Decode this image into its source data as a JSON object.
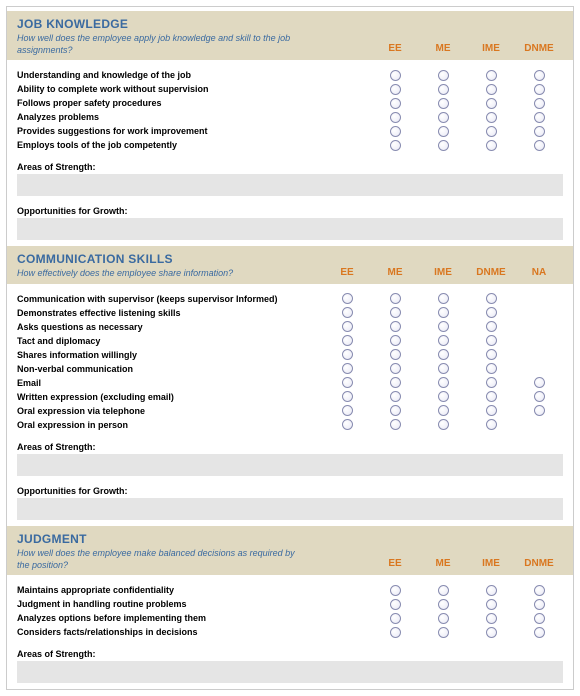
{
  "colors": {
    "header_bg": "#e0d9c1",
    "title_color": "#3a6aa0",
    "col_head_color": "#d97720",
    "textarea_bg": "#e5e5e5",
    "border": "#cccccc"
  },
  "sections": [
    {
      "title": "JOB KNOWLEDGE",
      "subtitle": "How well does the employee apply job knowledge and skill to the job assignments?",
      "columns": [
        "EE",
        "ME",
        "IME",
        "DNME"
      ],
      "items": [
        {
          "label": "Understanding and knowledge of the job",
          "na": false
        },
        {
          "label": "Ability to complete work without supervision",
          "na": false
        },
        {
          "label": "Follows proper safety procedures",
          "na": false
        },
        {
          "label": "Analyzes problems",
          "na": false
        },
        {
          "label": "Provides suggestions for work improvement",
          "na": false
        },
        {
          "label": "Employs tools of the job competently",
          "na": false
        }
      ],
      "strength_label": "Areas of Strength:",
      "growth_label": "Opportunities for Growth:"
    },
    {
      "title": "COMMUNICATION SKILLS",
      "subtitle": "How effectively does the employee share information?",
      "columns": [
        "EE",
        "ME",
        "IME",
        "DNME",
        "NA"
      ],
      "items": [
        {
          "label": "Communication with supervisor (keeps supervisor Informed)",
          "na": false
        },
        {
          "label": "Demonstrates effective listening skills",
          "na": false
        },
        {
          "label": "Asks questions as necessary",
          "na": false
        },
        {
          "label": "Tact and diplomacy",
          "na": false
        },
        {
          "label": "Shares information willingly",
          "na": false
        },
        {
          "label": "Non-verbal communication",
          "na": false
        },
        {
          "label": "Email",
          "na": true
        },
        {
          "label": "Written expression (excluding email)",
          "na": true
        },
        {
          "label": "Oral expression via telephone",
          "na": true
        },
        {
          "label": "Oral expression in person",
          "na": false
        }
      ],
      "strength_label": "Areas of Strength:",
      "growth_label": "Opportunities for Growth:"
    },
    {
      "title": "JUDGMENT",
      "subtitle": "How well does the employee make balanced decisions as required by the position?",
      "columns": [
        "EE",
        "ME",
        "IME",
        "DNME"
      ],
      "items": [
        {
          "label": "Maintains appropriate confidentiality",
          "na": false
        },
        {
          "label": "Judgment in handling routine problems",
          "na": false
        },
        {
          "label": "Analyzes options before implementing them",
          "na": false
        },
        {
          "label": "Considers facts/relationships in decisions",
          "na": false
        }
      ],
      "strength_label": "Areas of Strength:",
      "growth_label": null
    }
  ]
}
